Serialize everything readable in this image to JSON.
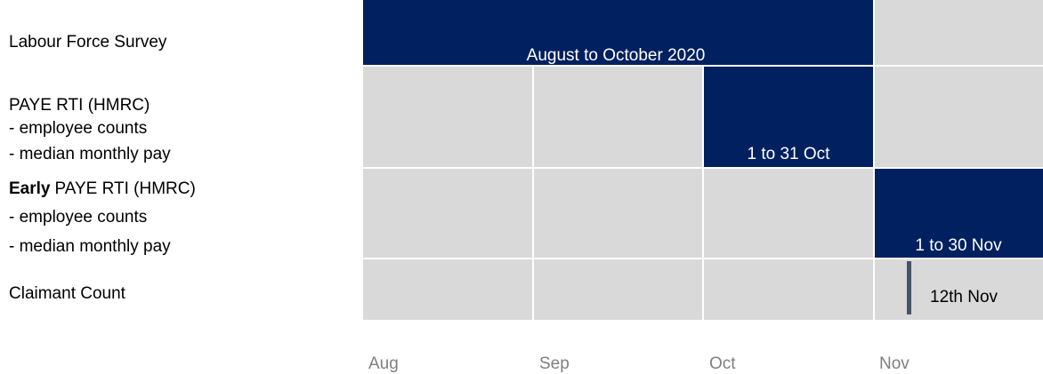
{
  "sources": [
    {
      "lines": [
        "Labour Force Survey"
      ]
    },
    {
      "lines": [
        "PAYE RTI (HMRC)",
        "- employee counts",
        "- median monthly pay"
      ]
    },
    {
      "bold": "Early",
      "lines": [
        "PAYE RTI (HMRC)",
        "- employee counts",
        "- median monthly pay"
      ]
    },
    {
      "lines": [
        "Claimant Count"
      ]
    }
  ],
  "months": [
    "Aug",
    "Sep",
    "Oct",
    "Nov"
  ],
  "periods": [
    "August to October 2020",
    "1 to 31 Oct",
    "1 to 30 Nov",
    "12th Nov"
  ]
}
